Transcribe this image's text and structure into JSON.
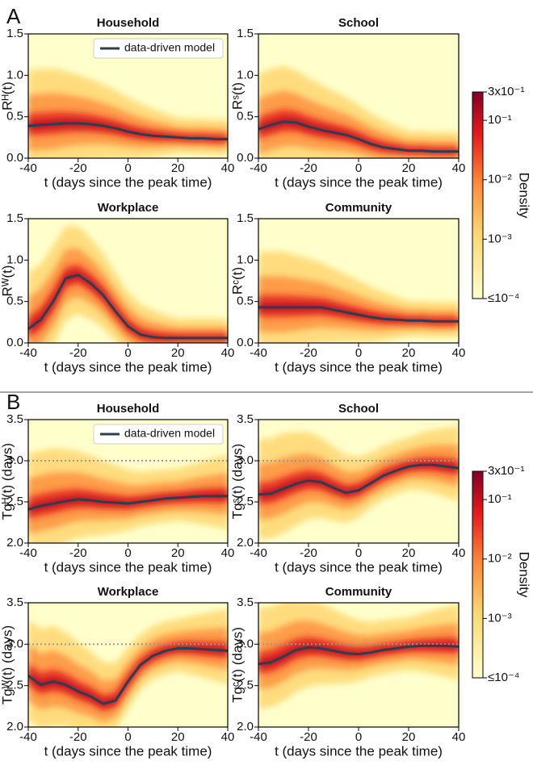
{
  "panel_labels": [
    "A",
    "B"
  ],
  "colorbars": [
    {
      "label": "Density",
      "log": true,
      "lim": [
        0.0001,
        0.3
      ],
      "ticks": [
        {
          "value": 0.3,
          "label": "3x10⁻¹"
        },
        {
          "value": 0.1,
          "label": "10⁻¹"
        },
        {
          "value": 0.01,
          "label": "10⁻²"
        },
        {
          "value": 0.001,
          "label": "10⁻³"
        },
        {
          "value": 0.0001,
          "label": "≤10⁻⁴"
        }
      ]
    },
    {
      "label": "Density",
      "log": true,
      "lim": [
        0.0001,
        0.3
      ],
      "ticks": [
        {
          "value": 0.3,
          "label": "3x10⁻¹"
        },
        {
          "value": 0.1,
          "label": "10⁻¹"
        },
        {
          "value": 0.01,
          "label": "10⁻²"
        },
        {
          "value": 0.001,
          "label": "10⁻³"
        },
        {
          "value": 0.0001,
          "label": "≤10⁻⁴"
        }
      ]
    }
  ],
  "chart_data": [
    {
      "type": "line",
      "title": "Household",
      "xlabel": "t (days since the peak time)",
      "ylabel": "Rᴴ(t)",
      "legend": "upper right",
      "x": [
        -40,
        -35,
        -30,
        -25,
        -20,
        -15,
        -10,
        -5,
        0,
        5,
        10,
        15,
        20,
        25,
        30,
        35,
        40
      ],
      "xlim": [
        -40,
        40
      ],
      "xticks": [
        -40,
        -20,
        0,
        20,
        40
      ],
      "ylim": [
        0,
        1.5
      ],
      "yticks": [
        {
          "value": 0,
          "label": "0.0"
        },
        {
          "value": 0.5,
          "label": "0.5"
        },
        {
          "value": 1,
          "label": "1.0"
        },
        {
          "value": 1.5,
          "label": "1.5"
        }
      ],
      "series": [
        {
          "name": "data-driven model",
          "color": "#2d3e50",
          "values": [
            0.39,
            0.4,
            0.41,
            0.42,
            0.42,
            0.41,
            0.39,
            0.36,
            0.32,
            0.29,
            0.27,
            0.26,
            0.25,
            0.24,
            0.24,
            0.23,
            0.23
          ]
        }
      ]
    },
    {
      "type": "line",
      "title": "School",
      "xlabel": "t (days since the peak time)",
      "ylabel": "Rˢ(t)",
      "x": [
        -40,
        -35,
        -30,
        -25,
        -20,
        -15,
        -10,
        -5,
        0,
        5,
        10,
        15,
        20,
        25,
        30,
        35,
        40
      ],
      "xlim": [
        -40,
        40
      ],
      "xticks": [
        -40,
        -20,
        0,
        20,
        40
      ],
      "ylim": [
        0,
        1.5
      ],
      "yticks": [
        {
          "value": 0,
          "label": "0.0"
        },
        {
          "value": 0.5,
          "label": "0.5"
        },
        {
          "value": 1,
          "label": "1.0"
        },
        {
          "value": 1.5,
          "label": "1.5"
        }
      ],
      "series": [
        {
          "color": "#2d3e50",
          "values": [
            0.35,
            0.4,
            0.44,
            0.43,
            0.38,
            0.34,
            0.31,
            0.28,
            0.23,
            0.17,
            0.13,
            0.11,
            0.09,
            0.09,
            0.08,
            0.08,
            0.08
          ]
        }
      ]
    },
    {
      "type": "line",
      "title": "Workplace",
      "xlabel": "t (days since the peak time)",
      "ylabel": "Rᵂ(t)",
      "x": [
        -40,
        -35,
        -30,
        -25,
        -20,
        -15,
        -10,
        -5,
        0,
        5,
        10,
        15,
        20,
        25,
        30,
        35,
        40
      ],
      "xlim": [
        -40,
        40
      ],
      "xticks": [
        -40,
        -20,
        0,
        20,
        40
      ],
      "ylim": [
        0,
        1.5
      ],
      "yticks": [
        {
          "value": 0,
          "label": "0.0"
        },
        {
          "value": 0.5,
          "label": "0.5"
        },
        {
          "value": 1,
          "label": "1.0"
        },
        {
          "value": 1.5,
          "label": "1.5"
        }
      ],
      "series": [
        {
          "color": "#2d3e50",
          "values": [
            0.17,
            0.28,
            0.5,
            0.78,
            0.82,
            0.72,
            0.58,
            0.38,
            0.2,
            0.1,
            0.07,
            0.06,
            0.06,
            0.06,
            0.06,
            0.06,
            0.06
          ]
        }
      ]
    },
    {
      "type": "line",
      "title": "Community",
      "xlabel": "t (days since the peak time)",
      "ylabel": "Rᶜ(t)",
      "x": [
        -40,
        -35,
        -30,
        -25,
        -20,
        -15,
        -10,
        -5,
        0,
        5,
        10,
        15,
        20,
        25,
        30,
        35,
        40
      ],
      "xlim": [
        -40,
        40
      ],
      "xticks": [
        -40,
        -20,
        0,
        20,
        40
      ],
      "ylim": [
        0,
        1.5
      ],
      "yticks": [
        {
          "value": 0,
          "label": "0.0"
        },
        {
          "value": 0.5,
          "label": "0.5"
        },
        {
          "value": 1,
          "label": "1.0"
        },
        {
          "value": 1.5,
          "label": "1.5"
        }
      ],
      "series": [
        {
          "color": "#2d3e50",
          "values": [
            0.43,
            0.43,
            0.43,
            0.43,
            0.43,
            0.43,
            0.4,
            0.37,
            0.34,
            0.31,
            0.29,
            0.28,
            0.27,
            0.27,
            0.26,
            0.26,
            0.26
          ]
        }
      ]
    },
    {
      "type": "line",
      "title": "Household",
      "xlabel": "t (days since the peak time)",
      "ylabel": "Tgᴴ(t) (days)",
      "legend": "upper right",
      "reference_line": 3,
      "x": [
        -40,
        -35,
        -30,
        -25,
        -20,
        -15,
        -10,
        -5,
        0,
        5,
        10,
        15,
        20,
        25,
        30,
        35,
        40
      ],
      "xlim": [
        -40,
        40
      ],
      "xticks": [
        -40,
        -20,
        0,
        20,
        40
      ],
      "ylim": [
        2,
        3.5
      ],
      "yticks": [
        {
          "value": 2,
          "label": "2.0"
        },
        {
          "value": 2.5,
          "label": "2.5"
        },
        {
          "value": 3,
          "label": "3.0"
        },
        {
          "value": 3.5,
          "label": "3.5"
        }
      ],
      "series": [
        {
          "name": "data-driven model",
          "color": "#2d3e50",
          "values": [
            2.41,
            2.45,
            2.48,
            2.51,
            2.53,
            2.52,
            2.5,
            2.49,
            2.48,
            2.5,
            2.52,
            2.54,
            2.55,
            2.56,
            2.57,
            2.57,
            2.57
          ]
        }
      ]
    },
    {
      "type": "line",
      "title": "School",
      "xlabel": "t (days since the peak time)",
      "ylabel": "Tgˢ(t) (days)",
      "reference_line": 3,
      "x": [
        -40,
        -35,
        -30,
        -25,
        -20,
        -15,
        -10,
        -5,
        0,
        5,
        10,
        15,
        20,
        25,
        30,
        35,
        40
      ],
      "xlim": [
        -40,
        40
      ],
      "xticks": [
        -40,
        -20,
        0,
        20,
        40
      ],
      "ylim": [
        2,
        3.5
      ],
      "yticks": [
        {
          "value": 2,
          "label": "2.0"
        },
        {
          "value": 2.5,
          "label": "2.5"
        },
        {
          "value": 3,
          "label": "3.0"
        },
        {
          "value": 3.5,
          "label": "3.5"
        }
      ],
      "series": [
        {
          "color": "#2d3e50",
          "values": [
            2.59,
            2.6,
            2.66,
            2.72,
            2.76,
            2.74,
            2.67,
            2.61,
            2.64,
            2.73,
            2.82,
            2.88,
            2.93,
            2.95,
            2.95,
            2.93,
            2.91
          ]
        }
      ]
    },
    {
      "type": "line",
      "title": "Workplace",
      "xlabel": "t (days since the peak time)",
      "ylabel": "Tgᵂ(t) (days)",
      "reference_line": 3,
      "x": [
        -40,
        -35,
        -30,
        -25,
        -20,
        -15,
        -10,
        -5,
        0,
        5,
        10,
        15,
        20,
        25,
        30,
        35,
        40
      ],
      "xlim": [
        -40,
        40
      ],
      "xticks": [
        -40,
        -20,
        0,
        20,
        40
      ],
      "ylim": [
        2,
        3.5
      ],
      "yticks": [
        {
          "value": 2,
          "label": "2.0"
        },
        {
          "value": 2.5,
          "label": "2.5"
        },
        {
          "value": 3,
          "label": "3.0"
        },
        {
          "value": 3.5,
          "label": "3.5"
        }
      ],
      "series": [
        {
          "color": "#2d3e50",
          "values": [
            2.62,
            2.51,
            2.55,
            2.51,
            2.43,
            2.37,
            2.28,
            2.32,
            2.55,
            2.75,
            2.86,
            2.92,
            2.95,
            2.95,
            2.94,
            2.93,
            2.92
          ]
        }
      ]
    },
    {
      "type": "line",
      "title": "Community",
      "xlabel": "t (days since the peak time)",
      "ylabel": "Tgᶜ(t) (days)",
      "reference_line": 3,
      "x": [
        -40,
        -35,
        -30,
        -25,
        -20,
        -15,
        -10,
        -5,
        0,
        5,
        10,
        15,
        20,
        25,
        30,
        35,
        40
      ],
      "xlim": [
        -40,
        40
      ],
      "xticks": [
        -40,
        -20,
        0,
        20,
        40
      ],
      "ylim": [
        2,
        3.5
      ],
      "yticks": [
        {
          "value": 2,
          "label": "2.0"
        },
        {
          "value": 2.5,
          "label": "2.5"
        },
        {
          "value": 3,
          "label": "3.0"
        },
        {
          "value": 3.5,
          "label": "3.5"
        }
      ],
      "series": [
        {
          "color": "#2d3e50",
          "values": [
            2.76,
            2.78,
            2.85,
            2.93,
            2.96,
            2.95,
            2.92,
            2.89,
            2.88,
            2.9,
            2.93,
            2.95,
            2.97,
            2.98,
            2.98,
            2.98,
            2.97
          ]
        }
      ]
    }
  ]
}
